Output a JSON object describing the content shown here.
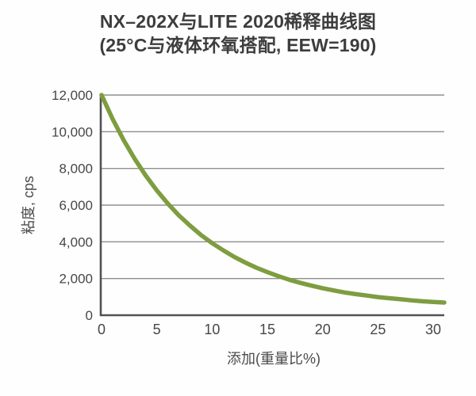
{
  "header": {
    "title_line1": "NX–202X与LITE 2020稀释曲线图",
    "title_line2": "(25°C与液体环氧搭配, EEW=190)"
  },
  "colors": {
    "curve": "#7e9d40",
    "grid": "#8f8f8f",
    "axis": "#525252",
    "text": "#3d3d3d"
  },
  "chart_data": {
    "type": "line",
    "title": "NX–202X与LITE 2020稀释曲线图",
    "subtitle": "(25°C与液体环氧搭配, EEW=190)",
    "xlabel": "添加(重量比%)",
    "ylabel": "粘度, cps",
    "xlim": [
      0,
      31
    ],
    "ylim": [
      0,
      12000
    ],
    "x_ticks": [
      0,
      5,
      10,
      15,
      20,
      25,
      30
    ],
    "y_ticks": [
      0,
      2000,
      4000,
      6000,
      8000,
      10000,
      12000
    ],
    "y_tick_labels": [
      "0",
      "2,000",
      "4,000",
      "6,000",
      "8,000",
      "10,000",
      "12,000"
    ],
    "grid": "horizontal gridlines only",
    "legend": "none",
    "series": [
      {
        "name": "NX-202X viscosity dilution curve",
        "x": [
          0,
          1,
          2,
          3,
          4,
          5,
          6,
          7,
          8,
          9,
          10,
          11,
          12,
          13,
          14,
          15,
          16,
          17,
          18,
          19,
          20,
          21,
          22,
          23,
          24,
          25,
          26,
          27,
          28,
          29,
          30,
          31
        ],
        "y": [
          12000,
          10700,
          9540,
          8520,
          7610,
          6800,
          6080,
          5440,
          4880,
          4370,
          3930,
          3540,
          3180,
          2870,
          2590,
          2350,
          2130,
          1930,
          1760,
          1610,
          1470,
          1350,
          1240,
          1150,
          1070,
          990,
          930,
          870,
          810,
          760,
          720,
          690
        ]
      }
    ]
  }
}
